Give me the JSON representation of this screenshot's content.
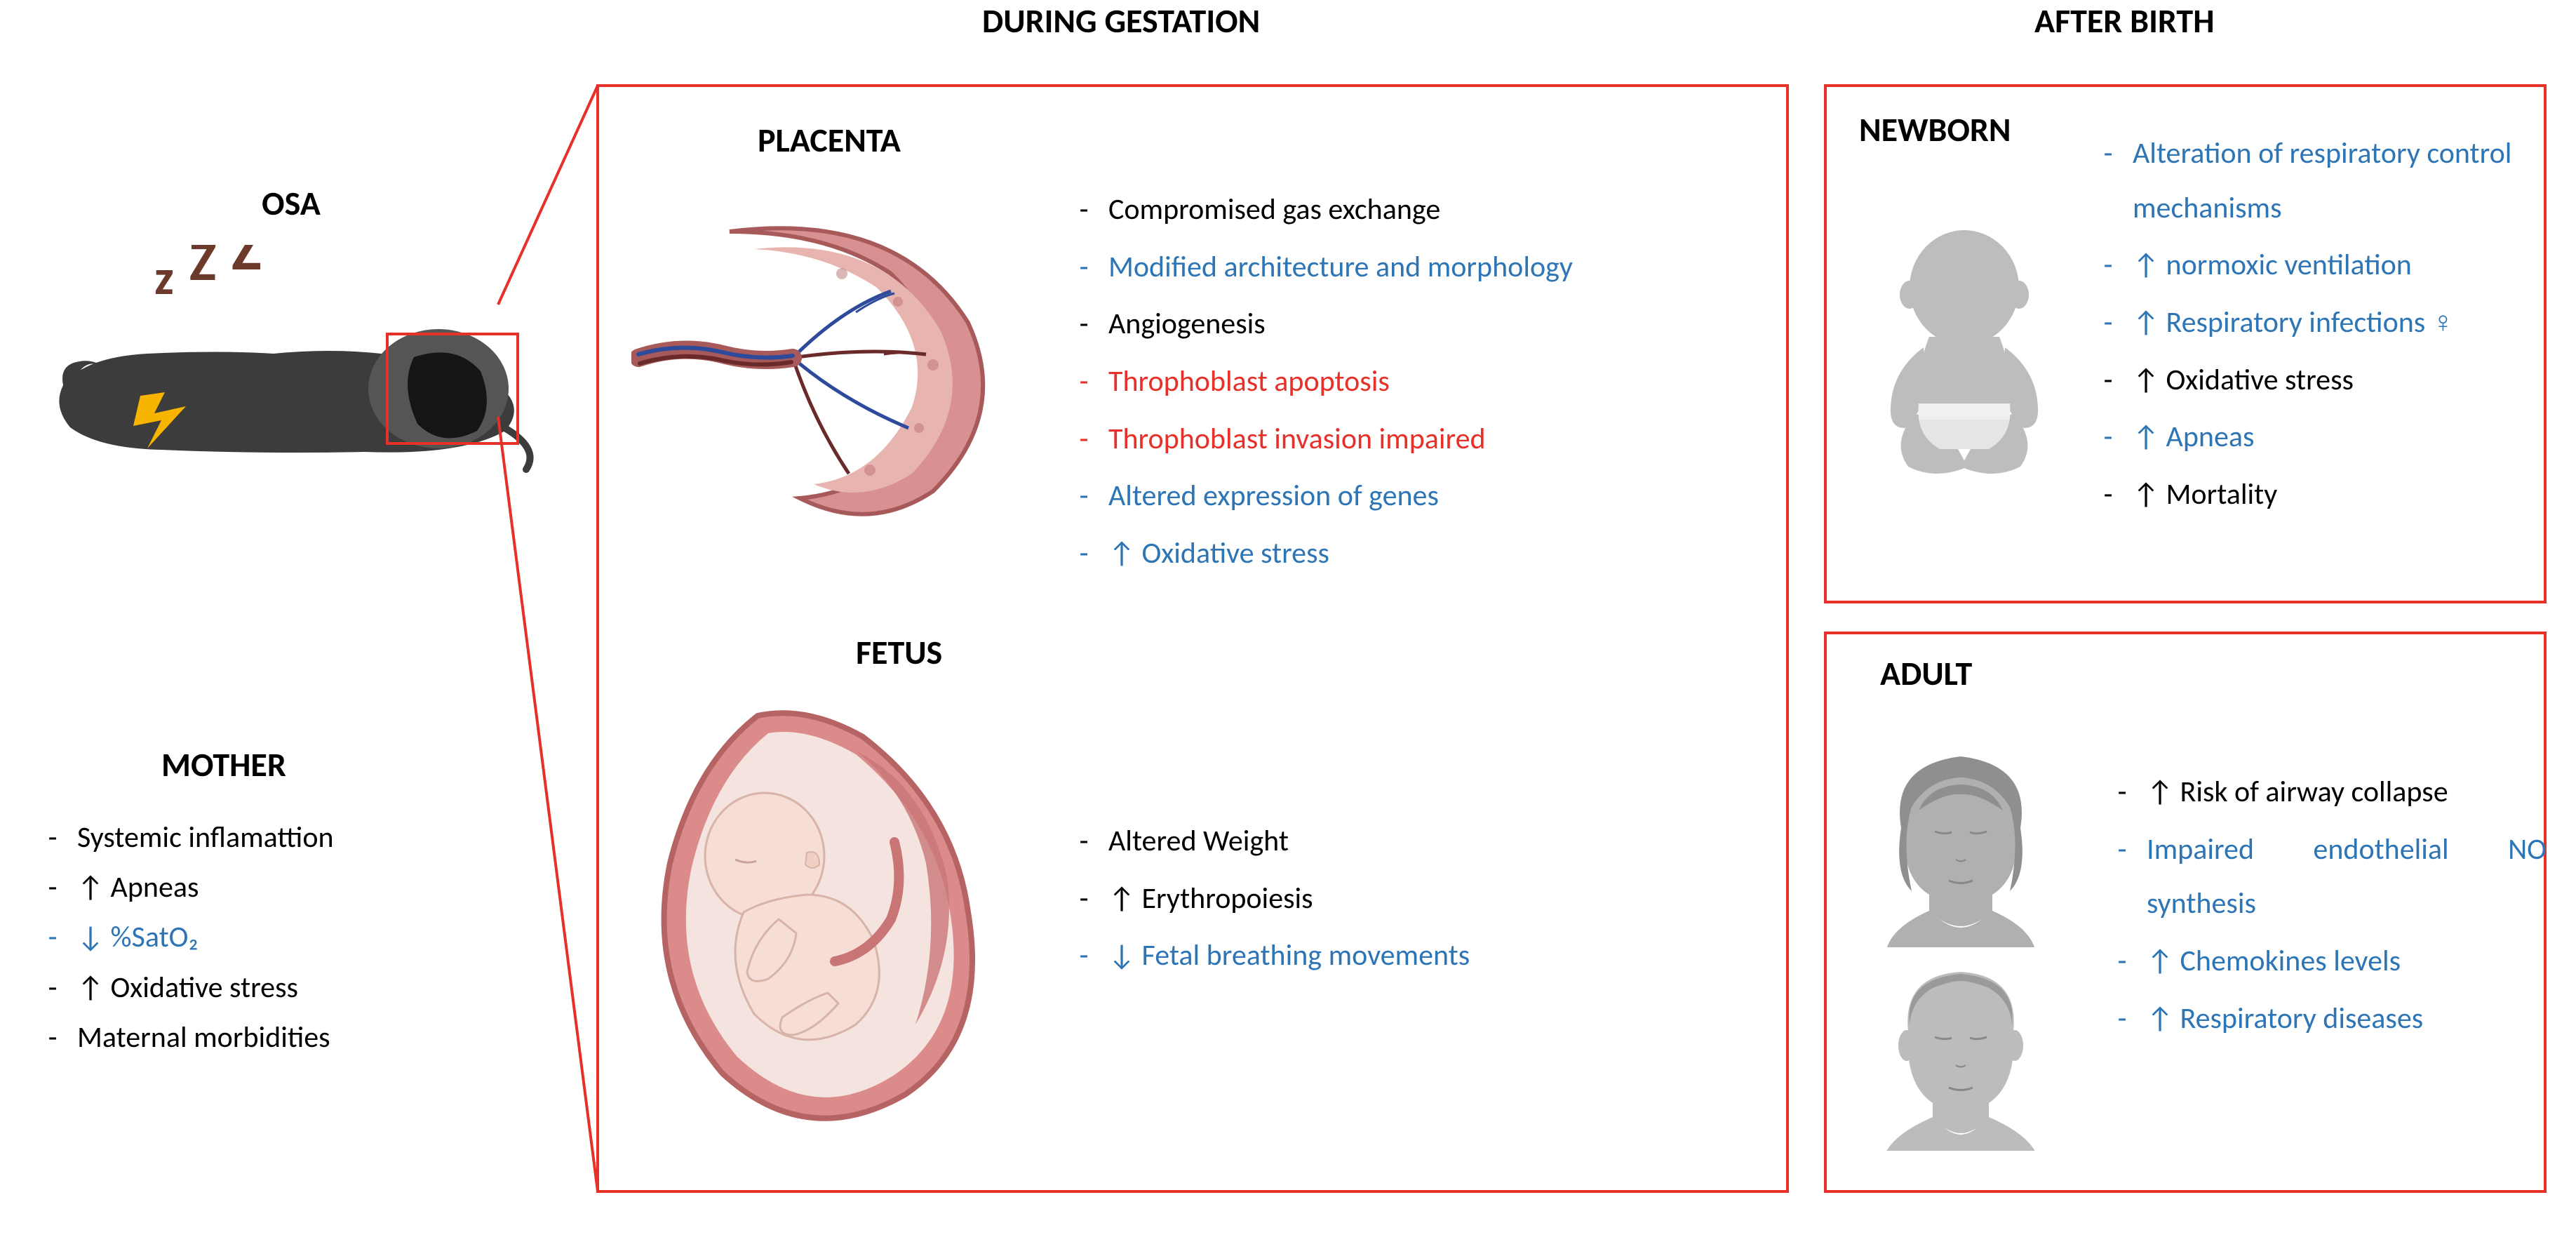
{
  "colors": {
    "black": "#000000",
    "blue": "#2e75b6",
    "red": "#e7302a",
    "border": "#e7302a",
    "background": "#ffffff",
    "gray_silhouette": "#b8b8b8"
  },
  "typography": {
    "heading_fontsize_pt": 36,
    "body_fontsize_pt": 32,
    "font_family": "Calibri"
  },
  "headers": {
    "gestation": "DURING GESTATION",
    "after_birth": "AFTER BIRTH"
  },
  "osa": {
    "label": "OSA"
  },
  "mother": {
    "label": "MOTHER",
    "items": [
      {
        "text": "Systemic inflamattion",
        "color": "black"
      },
      {
        "text": "↑ Apneas",
        "color": "black"
      },
      {
        "text": "↓ %SatO₂",
        "color": "blue"
      },
      {
        "text": "↑ Oxidative stress",
        "color": "black"
      },
      {
        "text": "Maternal morbidities",
        "color": "black"
      }
    ]
  },
  "placenta": {
    "label": "PLACENTA",
    "items": [
      {
        "text": "Compromised gas exchange",
        "color": "black"
      },
      {
        "text": "Modified architecture and morphology",
        "color": "blue"
      },
      {
        "text": "Angiogenesis",
        "color": "black"
      },
      {
        "text": "Throphoblast apoptosis",
        "color": "red"
      },
      {
        "text": "Throphoblast invasion impaired",
        "color": "red"
      },
      {
        "text": "Altered expression of genes",
        "color": "blue"
      },
      {
        "text": "↑ Oxidative stress",
        "color": "blue"
      }
    ]
  },
  "fetus": {
    "label": "FETUS",
    "items": [
      {
        "text": "Altered Weight",
        "color": "black"
      },
      {
        "text": "↑ Erythropoiesis",
        "color": "black"
      },
      {
        "text": "↓ Fetal breathing movements",
        "color": "blue"
      }
    ]
  },
  "newborn": {
    "label": "NEWBORN",
    "items": [
      {
        "text": "Alteration of respiratory control mechanisms",
        "color": "blue"
      },
      {
        "text": "↑ normoxic ventilation",
        "color": "blue"
      },
      {
        "text": "↑ Respiratory infections ♀",
        "color": "blue"
      },
      {
        "text": "↑ Oxidative stress",
        "color": "black"
      },
      {
        "text": "↑  Apneas",
        "color": "blue"
      },
      {
        "text": "↑  Mortality",
        "color": "black"
      }
    ]
  },
  "adult": {
    "label": "ADULT",
    "items": [
      {
        "text": "↑ Risk of airway collapse",
        "color": "black",
        "justify": true
      },
      {
        "text": "Impaired endothelial NO synthesis",
        "color": "blue",
        "justify": true
      },
      {
        "text": "↑ Chemokines levels",
        "color": "blue"
      },
      {
        "text": "↑ Respiratory diseases",
        "color": "blue"
      }
    ]
  }
}
